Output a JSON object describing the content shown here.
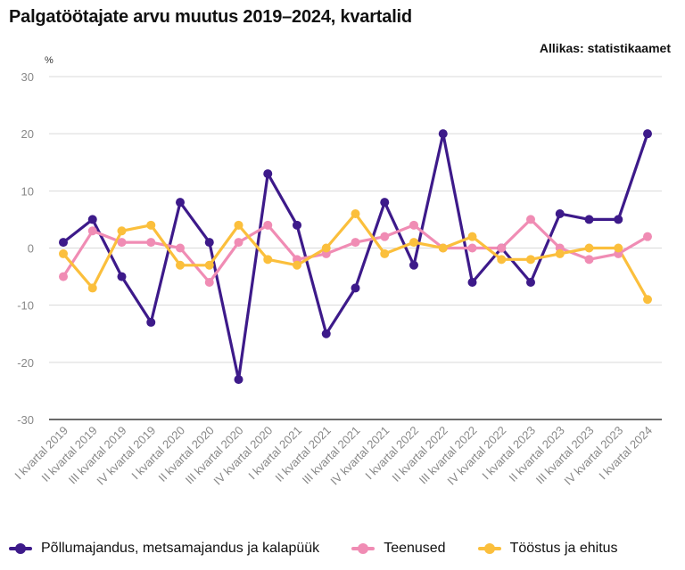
{
  "chart_data": {
    "type": "line",
    "title": "Palgatöötajate arvu muutus 2019–2024, kvartalid",
    "source": "Allikas: statistikaamet",
    "ylabel": "%",
    "ylim": [
      -30,
      30
    ],
    "yticks": [
      30,
      20,
      10,
      0,
      -10,
      -20,
      -30
    ],
    "grid": true,
    "legend_position": "bottom",
    "categories": [
      "I kvartal 2019",
      "II kvartal 2019",
      "III kvartal 2019",
      "IV kvartal 2019",
      "I kvartal 2020",
      "II kvartal 2020",
      "III kvartal 2020",
      "IV kvartal 2020",
      "I kvartal 2021",
      "II kvartal 2021",
      "III kvartal 2021",
      "IV kvartal 2021",
      "I kvartal 2022",
      "II kvartal 2022",
      "III kvartal 2022",
      "IV kvartal 2022",
      "I kvartal 2023",
      "II kvartal 2023",
      "III kvartal 2023",
      "IV kvartal 2023",
      "I kvartal 2024"
    ],
    "series": [
      {
        "name": "Põllumajandus, metsamajandus ja kalapüük",
        "color": "#3d1a8a",
        "values": [
          1,
          5,
          -5,
          -13,
          8,
          1,
          -23,
          13,
          4,
          -15,
          -7,
          8,
          -3,
          20,
          -6,
          0,
          -6,
          6,
          5,
          5,
          20
        ]
      },
      {
        "name": "Teenused",
        "color": "#f08cb4",
        "values": [
          -5,
          3,
          1,
          1,
          0,
          -6,
          1,
          4,
          -2,
          -1,
          1,
          2,
          4,
          0,
          0,
          0,
          5,
          0,
          -2,
          -1,
          2
        ]
      },
      {
        "name": "Tööstus ja ehitus",
        "color": "#fbbf3c",
        "values": [
          -1,
          -7,
          3,
          4,
          -3,
          -3,
          4,
          -2,
          -3,
          0,
          6,
          -1,
          1,
          0,
          2,
          -2,
          -2,
          -1,
          0,
          0,
          -9
        ]
      }
    ]
  }
}
